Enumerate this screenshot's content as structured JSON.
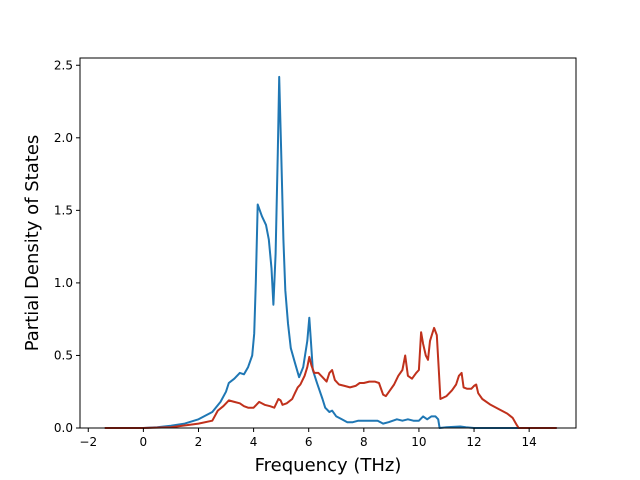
{
  "chart_data": {
    "type": "line",
    "xlabel": "Frequency (THz)",
    "ylabel": "Partial Density of States",
    "xlim": [
      -2.3,
      15.7
    ],
    "ylim": [
      0,
      2.55
    ],
    "xticks": [
      -2,
      0,
      2,
      4,
      6,
      8,
      10,
      12,
      14
    ],
    "yticks": [
      0.0,
      0.5,
      1.0,
      1.5,
      2.0,
      2.5
    ],
    "xtick_labels": [
      "−2",
      "0",
      "2",
      "4",
      "6",
      "8",
      "10",
      "12",
      "14"
    ],
    "ytick_labels": [
      "0.0",
      "0.5",
      "1.0",
      "1.5",
      "2.0",
      "2.5"
    ],
    "grid": false,
    "series": [
      {
        "color": "#1f77b4",
        "points": [
          [
            -1.4,
            0.0
          ],
          [
            0.0,
            0.0
          ],
          [
            0.5,
            0.005
          ],
          [
            1.0,
            0.015
          ],
          [
            1.5,
            0.03
          ],
          [
            2.0,
            0.06
          ],
          [
            2.5,
            0.11
          ],
          [
            2.8,
            0.18
          ],
          [
            3.0,
            0.25
          ],
          [
            3.1,
            0.31
          ],
          [
            3.3,
            0.34
          ],
          [
            3.5,
            0.38
          ],
          [
            3.65,
            0.37
          ],
          [
            3.8,
            0.42
          ],
          [
            3.95,
            0.5
          ],
          [
            4.02,
            0.65
          ],
          [
            4.08,
            1.0
          ],
          [
            4.15,
            1.54
          ],
          [
            4.3,
            1.46
          ],
          [
            4.45,
            1.4
          ],
          [
            4.55,
            1.3
          ],
          [
            4.65,
            1.1
          ],
          [
            4.72,
            0.85
          ],
          [
            4.8,
            1.2
          ],
          [
            4.88,
            1.9
          ],
          [
            4.93,
            2.42
          ],
          [
            5.0,
            1.9
          ],
          [
            5.08,
            1.3
          ],
          [
            5.15,
            0.95
          ],
          [
            5.25,
            0.72
          ],
          [
            5.35,
            0.55
          ],
          [
            5.5,
            0.45
          ],
          [
            5.65,
            0.35
          ],
          [
            5.8,
            0.42
          ],
          [
            5.95,
            0.6
          ],
          [
            6.02,
            0.76
          ],
          [
            6.08,
            0.6
          ],
          [
            6.15,
            0.4
          ],
          [
            6.3,
            0.31
          ],
          [
            6.5,
            0.2
          ],
          [
            6.6,
            0.14
          ],
          [
            6.75,
            0.11
          ],
          [
            6.85,
            0.12
          ],
          [
            7.0,
            0.08
          ],
          [
            7.2,
            0.06
          ],
          [
            7.4,
            0.04
          ],
          [
            7.6,
            0.04
          ],
          [
            7.8,
            0.05
          ],
          [
            8.2,
            0.05
          ],
          [
            8.5,
            0.05
          ],
          [
            8.7,
            0.03
          ],
          [
            8.9,
            0.04
          ],
          [
            9.2,
            0.06
          ],
          [
            9.4,
            0.05
          ],
          [
            9.6,
            0.06
          ],
          [
            9.8,
            0.05
          ],
          [
            10.0,
            0.05
          ],
          [
            10.15,
            0.08
          ],
          [
            10.3,
            0.06
          ],
          [
            10.45,
            0.08
          ],
          [
            10.6,
            0.08
          ],
          [
            10.7,
            0.06
          ],
          [
            10.75,
            0.0
          ],
          [
            11.0,
            0.005
          ],
          [
            11.5,
            0.01
          ],
          [
            11.7,
            0.005
          ],
          [
            12.0,
            0.0
          ],
          [
            15.0,
            0.0
          ]
        ]
      },
      {
        "color": "#c0311c",
        "points": [
          [
            -1.4,
            0.0
          ],
          [
            0.0,
            0.0
          ],
          [
            1.0,
            0.005
          ],
          [
            2.0,
            0.03
          ],
          [
            2.5,
            0.05
          ],
          [
            2.7,
            0.12
          ],
          [
            2.9,
            0.15
          ],
          [
            3.1,
            0.19
          ],
          [
            3.3,
            0.18
          ],
          [
            3.5,
            0.17
          ],
          [
            3.65,
            0.15
          ],
          [
            3.8,
            0.14
          ],
          [
            4.0,
            0.14
          ],
          [
            4.1,
            0.16
          ],
          [
            4.2,
            0.18
          ],
          [
            4.4,
            0.16
          ],
          [
            4.6,
            0.15
          ],
          [
            4.75,
            0.14
          ],
          [
            4.9,
            0.2
          ],
          [
            4.98,
            0.19
          ],
          [
            5.05,
            0.16
          ],
          [
            5.2,
            0.17
          ],
          [
            5.4,
            0.2
          ],
          [
            5.5,
            0.24
          ],
          [
            5.6,
            0.28
          ],
          [
            5.7,
            0.3
          ],
          [
            5.85,
            0.36
          ],
          [
            5.95,
            0.42
          ],
          [
            6.02,
            0.49
          ],
          [
            6.1,
            0.43
          ],
          [
            6.2,
            0.38
          ],
          [
            6.35,
            0.38
          ],
          [
            6.5,
            0.35
          ],
          [
            6.65,
            0.32
          ],
          [
            6.75,
            0.38
          ],
          [
            6.85,
            0.4
          ],
          [
            6.95,
            0.33
          ],
          [
            7.1,
            0.3
          ],
          [
            7.3,
            0.29
          ],
          [
            7.5,
            0.28
          ],
          [
            7.7,
            0.29
          ],
          [
            7.85,
            0.31
          ],
          [
            8.0,
            0.31
          ],
          [
            8.2,
            0.32
          ],
          [
            8.4,
            0.32
          ],
          [
            8.55,
            0.31
          ],
          [
            8.7,
            0.23
          ],
          [
            8.8,
            0.22
          ],
          [
            8.95,
            0.26
          ],
          [
            9.1,
            0.3
          ],
          [
            9.25,
            0.36
          ],
          [
            9.4,
            0.4
          ],
          [
            9.5,
            0.5
          ],
          [
            9.6,
            0.36
          ],
          [
            9.75,
            0.34
          ],
          [
            9.9,
            0.38
          ],
          [
            10.0,
            0.4
          ],
          [
            10.08,
            0.66
          ],
          [
            10.15,
            0.58
          ],
          [
            10.25,
            0.5
          ],
          [
            10.33,
            0.47
          ],
          [
            10.4,
            0.6
          ],
          [
            10.5,
            0.66
          ],
          [
            10.55,
            0.69
          ],
          [
            10.65,
            0.64
          ],
          [
            10.72,
            0.4
          ],
          [
            10.78,
            0.2
          ],
          [
            11.0,
            0.22
          ],
          [
            11.2,
            0.26
          ],
          [
            11.35,
            0.3
          ],
          [
            11.45,
            0.36
          ],
          [
            11.55,
            0.38
          ],
          [
            11.62,
            0.28
          ],
          [
            11.75,
            0.27
          ],
          [
            11.9,
            0.27
          ],
          [
            12.0,
            0.29
          ],
          [
            12.08,
            0.3
          ],
          [
            12.15,
            0.24
          ],
          [
            12.3,
            0.2
          ],
          [
            12.6,
            0.16
          ],
          [
            12.9,
            0.13
          ],
          [
            13.2,
            0.1
          ],
          [
            13.4,
            0.07
          ],
          [
            13.55,
            0.02
          ],
          [
            13.62,
            0.0
          ],
          [
            15.0,
            0.0
          ]
        ]
      }
    ]
  }
}
